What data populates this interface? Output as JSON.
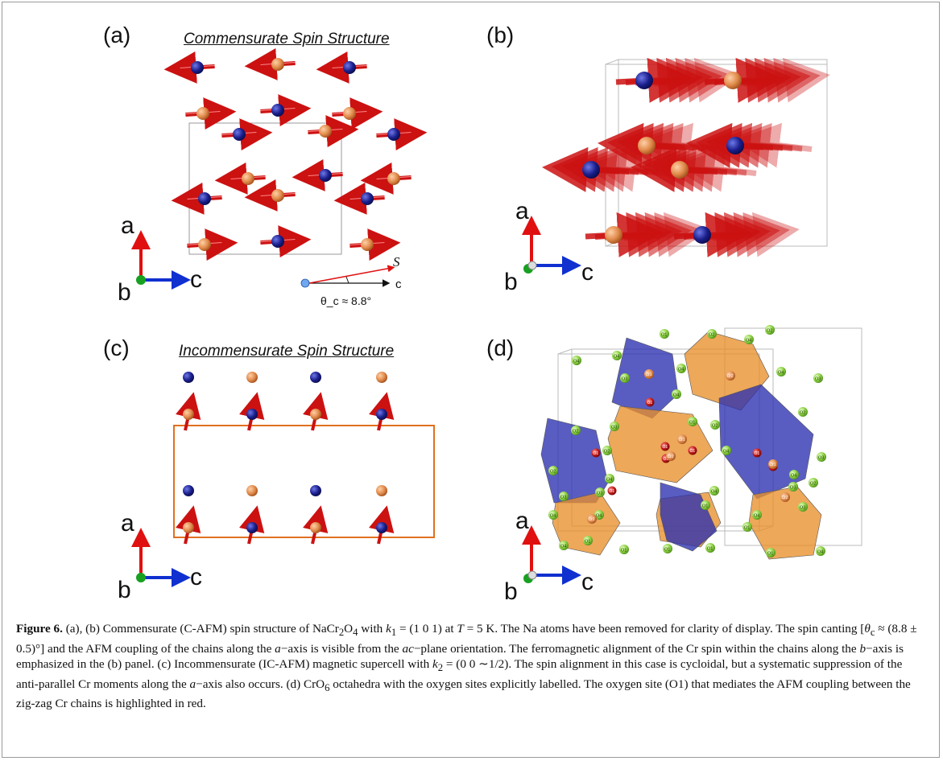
{
  "panels": {
    "a": {
      "label": "(a)",
      "title": "Commensurate Spin Structure"
    },
    "b": {
      "label": "(b)"
    },
    "c": {
      "label": "(c)",
      "title": "Incommensurate Spin Structure"
    },
    "d": {
      "label": "(d)"
    }
  },
  "axes": {
    "a": "a",
    "b": "b",
    "c": "c"
  },
  "angle_inset": {
    "spin_label": "S",
    "axis_label": "c",
    "angle_text": "θ_c ≈ 8.8°"
  },
  "atoms": {
    "O1": "O1",
    "O2": "O2",
    "O3": "O3",
    "O4": "O4",
    "Cr1": "Cr1",
    "Cr2": "Cr2"
  },
  "colors": {
    "cr_blue": "#1a1f8c",
    "cr_orange": "#e08a4a",
    "spin_arrow": "#cc1111",
    "axis_a": "#e01010",
    "axis_c": "#1030d0",
    "axis_b": "#18a020",
    "oct_blue": "#2a2fb0",
    "oct_orange": "#e8902c",
    "oxygen_green": "#8ad040",
    "oxygen_red": "#c01818",
    "cell_orange": "#e07020"
  },
  "caption": {
    "fig": "Figure 6.",
    "t1": " (a), (b) Commensurate (C-AFM) spin structure of NaCr",
    "t2": "O",
    "t3": " with ",
    "t4": " = (1 0 1) at ",
    "t5": " = 5 K. The Na atoms have been removed for clarity of display. The spin canting [",
    "t6": " ≈ (8.8 ± 0.5)°] and the AFM coupling of the chains along the ",
    "t7": "−axis is visible from the ",
    "t8": "−plane orientation. The ferromagnetic alignment of the Cr spin within the chains along the ",
    "t9": "−axis is emphasized in the (b) panel. (c) Incommensurate (IC-AFM) magnetic supercell with ",
    "t10": " = (0 0 ∼1/2). The spin alignment in this case is cycloidal, but a systematic suppression of the anti-parallel Cr moments along the ",
    "t11": "−axis also occurs. (d) CrO",
    "t12": " octahedra with the oxygen sites explicitly labelled. The oxygen site (O1) that mediates the AFM coupling between the zig-zag Cr chains is highlighted in red.",
    "sub2": "2",
    "sub4": "4",
    "sub6": "6",
    "k": "k",
    "k1sub": "1",
    "k2sub": "2",
    "T": "T",
    "theta": "θ",
    "csub": "c",
    "a_it": "a",
    "ac_it": "ac",
    "b_it": "b"
  }
}
